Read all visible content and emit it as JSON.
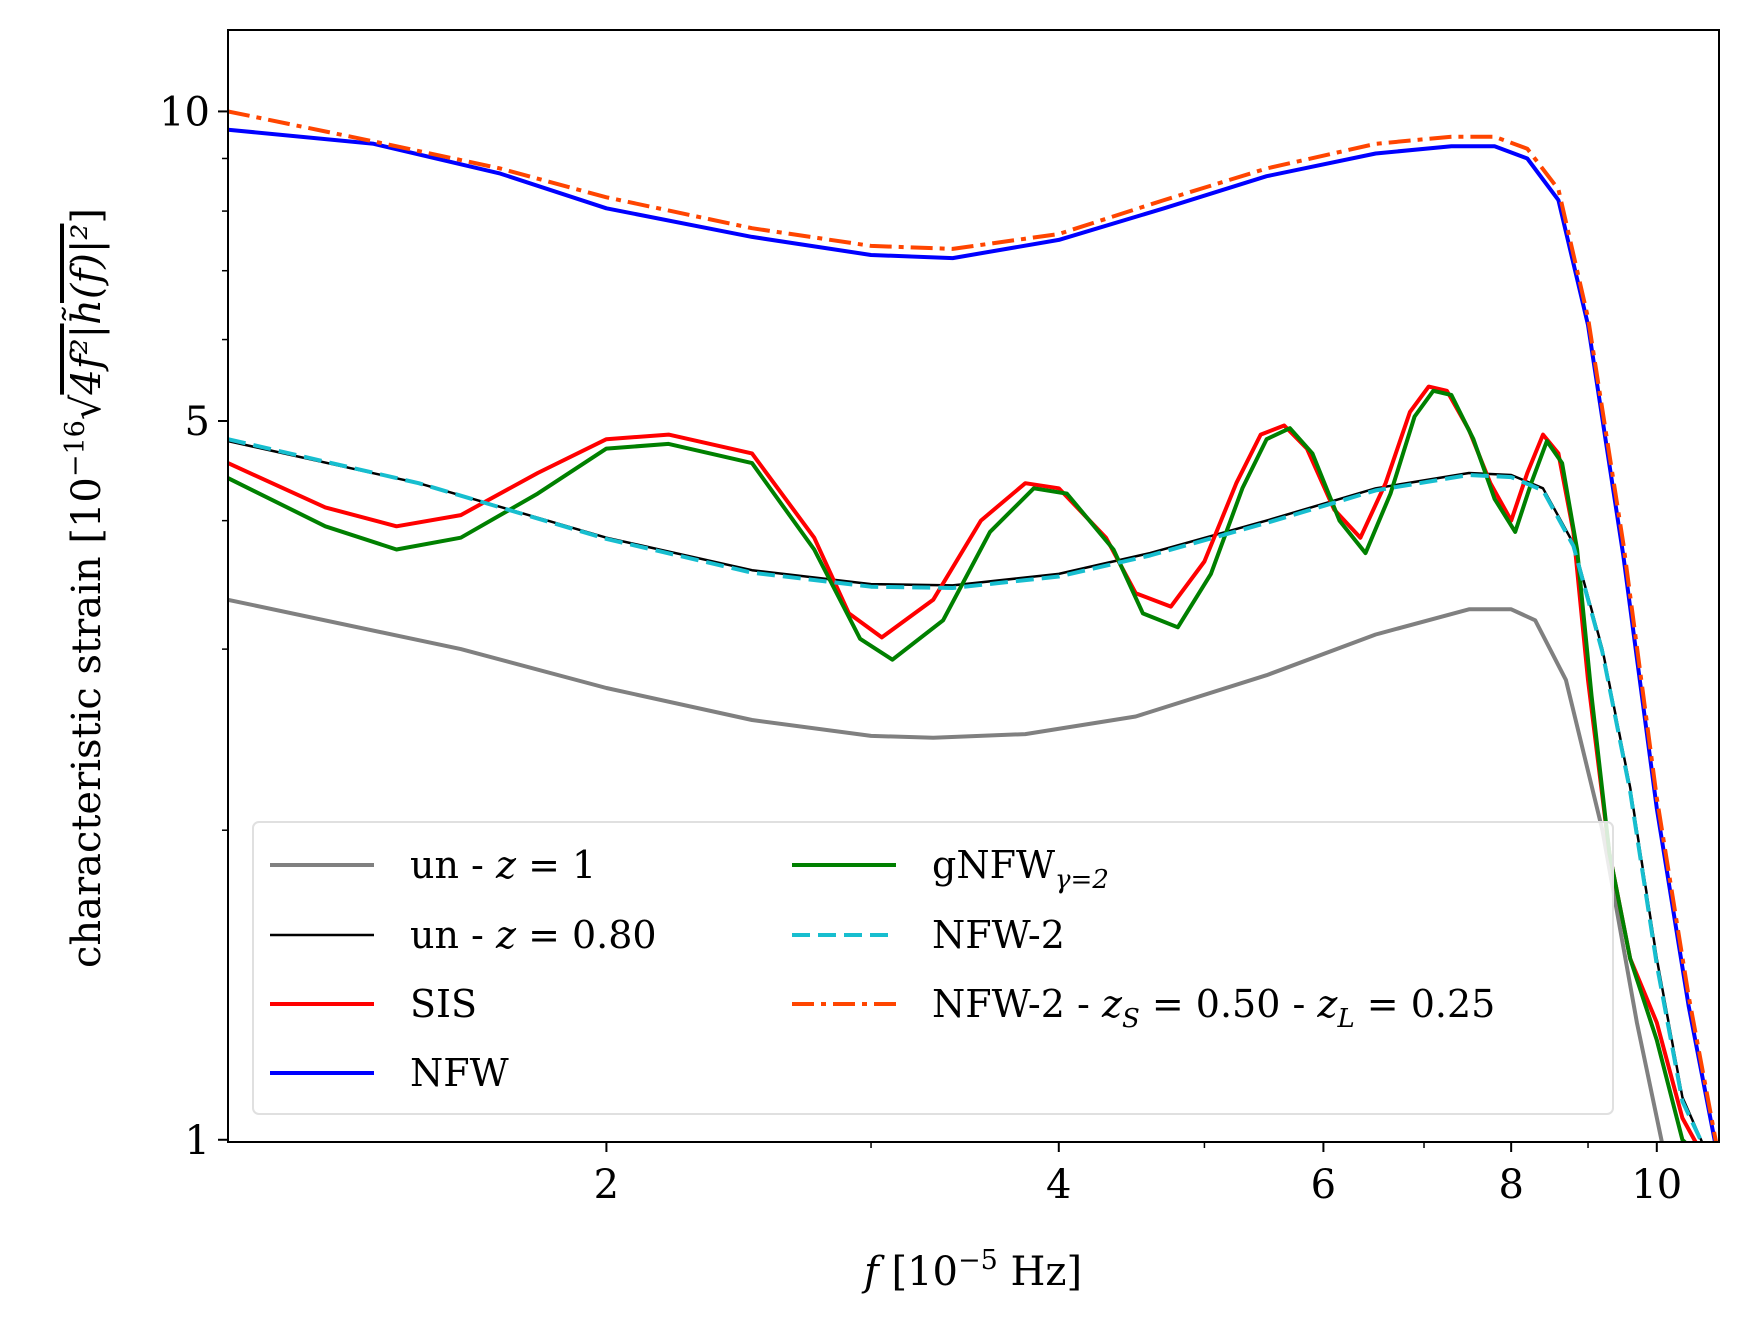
{
  "chart_data": {
    "type": "line",
    "xlabel": "f  [10⁻⁵ Hz]",
    "ylabel": "characteristic strain [10⁻¹⁶√4f²|h̃(f)|²]",
    "xscale": "log",
    "yscale": "log",
    "xlim": [
      1.12,
      11.0
    ],
    "ylim": [
      0.995,
      12.0
    ],
    "xticks": [
      {
        "value": 2,
        "label": "2"
      },
      {
        "value": 4,
        "label": "4"
      },
      {
        "value": 6,
        "label": "6"
      },
      {
        "value": 8,
        "label": "8"
      },
      {
        "value": 10,
        "label": "10"
      }
    ],
    "yticks": [
      {
        "value": 1,
        "label": "1"
      },
      {
        "value": 5,
        "label": "5"
      },
      {
        "value": 10,
        "label": "10"
      }
    ],
    "legend_location": "lower-left",
    "legend_columns": 2,
    "series": [
      {
        "name": "un - z = 1",
        "color": "#808080",
        "style": "solid",
        "width": 4,
        "x": [
          1.12,
          1.6,
          2.0,
          2.5,
          3.0,
          3.3,
          3.8,
          4.5,
          5.5,
          6.5,
          7.5,
          8.0,
          8.3,
          8.7,
          9.2,
          9.7,
          10.1
        ],
        "y": [
          3.35,
          3.0,
          2.75,
          2.56,
          2.47,
          2.46,
          2.48,
          2.58,
          2.83,
          3.1,
          3.28,
          3.28,
          3.2,
          2.8,
          2.0,
          1.3,
          0.98
        ]
      },
      {
        "name": "un - z = 0.80",
        "color": "#000000",
        "style": "solid",
        "width": 2.5,
        "x": [
          1.12,
          1.5,
          2.0,
          2.5,
          3.0,
          3.4,
          4.0,
          4.6,
          5.5,
          6.5,
          7.5,
          8.0,
          8.4,
          8.8,
          9.2,
          9.6,
          10.0,
          10.4,
          10.8
        ],
        "y": [
          4.78,
          4.35,
          3.85,
          3.58,
          3.47,
          3.46,
          3.55,
          3.72,
          4.0,
          4.3,
          4.45,
          4.43,
          4.3,
          3.8,
          3.0,
          2.2,
          1.5,
          1.1,
          0.97
        ]
      },
      {
        "name": "SIS",
        "color": "#ff0000",
        "style": "solid",
        "width": 4,
        "x": [
          1.12,
          1.3,
          1.45,
          1.6,
          1.8,
          2.0,
          2.2,
          2.5,
          2.75,
          2.9,
          3.05,
          3.3,
          3.55,
          3.8,
          4.0,
          4.3,
          4.5,
          4.75,
          5.0,
          5.25,
          5.45,
          5.65,
          5.85,
          6.1,
          6.35,
          6.6,
          6.85,
          7.05,
          7.25,
          7.5,
          7.75,
          8.0,
          8.2,
          8.4,
          8.6,
          8.8,
          9.0,
          9.3,
          9.6,
          10.0,
          10.4,
          10.8
        ],
        "y": [
          4.55,
          4.12,
          3.95,
          4.05,
          4.45,
          4.8,
          4.85,
          4.65,
          3.85,
          3.25,
          3.08,
          3.35,
          4.0,
          4.35,
          4.3,
          3.85,
          3.4,
          3.3,
          3.65,
          4.35,
          4.85,
          4.95,
          4.7,
          4.1,
          3.85,
          4.35,
          5.1,
          5.4,
          5.35,
          4.9,
          4.35,
          4.0,
          4.45,
          4.85,
          4.65,
          3.9,
          2.8,
          1.9,
          1.5,
          1.3,
          1.05,
          0.95
        ]
      },
      {
        "name": "NFW",
        "color": "#0000ff",
        "style": "solid",
        "width": 4,
        "x": [
          1.12,
          1.4,
          1.7,
          2.0,
          2.5,
          3.0,
          3.4,
          4.0,
          4.7,
          5.5,
          6.5,
          7.3,
          7.8,
          8.2,
          8.6,
          9.0,
          9.5,
          10.0,
          10.5,
          11.0
        ],
        "y": [
          9.6,
          9.3,
          8.7,
          8.05,
          7.55,
          7.25,
          7.2,
          7.5,
          8.05,
          8.65,
          9.1,
          9.25,
          9.25,
          9.0,
          8.2,
          6.2,
          3.7,
          2.1,
          1.35,
          0.95
        ]
      },
      {
        "name": "gNFW_{γ=2}",
        "color": "#008000",
        "style": "solid",
        "width": 4,
        "x": [
          1.12,
          1.3,
          1.45,
          1.6,
          1.8,
          2.0,
          2.2,
          2.5,
          2.75,
          2.95,
          3.1,
          3.35,
          3.6,
          3.85,
          4.05,
          4.35,
          4.55,
          4.8,
          5.05,
          5.3,
          5.5,
          5.7,
          5.9,
          6.15,
          6.4,
          6.65,
          6.9,
          7.1,
          7.3,
          7.55,
          7.8,
          8.05,
          8.25,
          8.45,
          8.65,
          8.85,
          9.05,
          9.3,
          9.6,
          10.0,
          10.4,
          10.8
        ],
        "y": [
          4.4,
          3.95,
          3.75,
          3.85,
          4.25,
          4.7,
          4.75,
          4.55,
          3.75,
          3.07,
          2.93,
          3.2,
          3.9,
          4.3,
          4.25,
          3.75,
          3.25,
          3.15,
          3.55,
          4.3,
          4.8,
          4.92,
          4.65,
          4.0,
          3.72,
          4.25,
          5.05,
          5.35,
          5.3,
          4.8,
          4.2,
          3.9,
          4.35,
          4.78,
          4.55,
          3.75,
          2.7,
          1.9,
          1.5,
          1.25,
          1.0,
          0.95
        ]
      },
      {
        "name": "NFW-2",
        "color": "#17becf",
        "style": "dashed",
        "width": 4,
        "x": [
          1.12,
          1.5,
          2.0,
          2.5,
          3.0,
          3.4,
          4.0,
          4.6,
          5.5,
          6.5,
          7.5,
          8.0,
          8.4,
          8.8,
          9.2,
          9.6,
          10.0,
          10.4,
          10.8
        ],
        "y": [
          4.8,
          4.35,
          3.84,
          3.56,
          3.45,
          3.44,
          3.53,
          3.7,
          3.98,
          4.28,
          4.43,
          4.41,
          4.28,
          3.78,
          2.98,
          2.18,
          1.48,
          1.09,
          0.97
        ]
      },
      {
        "name": "NFW-2 - z_S = 0.50 - z_L = 0.25",
        "color": "#ff4500",
        "style": "dashdot",
        "width": 4,
        "x": [
          1.12,
          1.4,
          1.7,
          2.0,
          2.5,
          3.0,
          3.4,
          4.0,
          4.7,
          5.5,
          6.5,
          7.3,
          7.8,
          8.2,
          8.6,
          9.0,
          9.5,
          10.0,
          10.5,
          11.0
        ],
        "y": [
          10.0,
          9.35,
          8.8,
          8.25,
          7.7,
          7.4,
          7.35,
          7.6,
          8.2,
          8.8,
          9.3,
          9.45,
          9.45,
          9.2,
          8.4,
          6.3,
          3.8,
          2.15,
          1.38,
          0.96
        ]
      }
    ]
  }
}
